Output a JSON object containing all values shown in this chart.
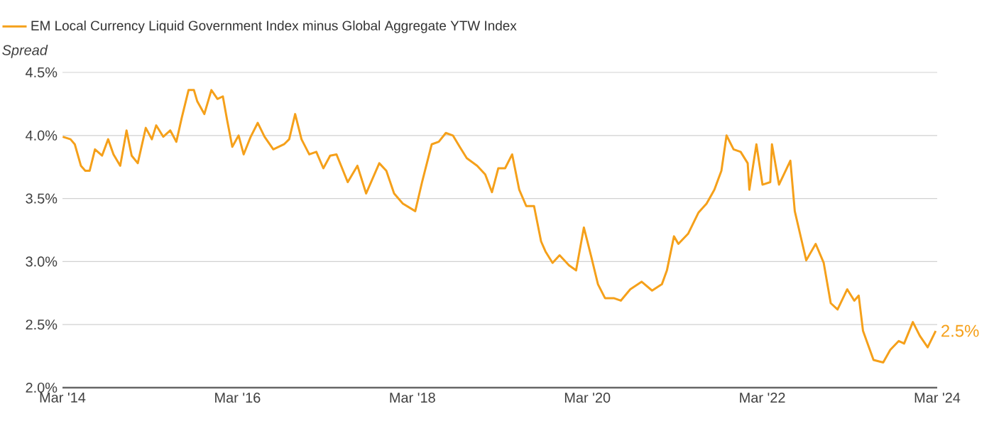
{
  "chart_data": {
    "type": "line",
    "ylabel": "Spread",
    "legend": "top",
    "grid": "y",
    "xlim": [
      "2014-03-01",
      "2024-03-01"
    ],
    "ylim": [
      2.0,
      4.5
    ],
    "xticks": [
      {
        "value": "2014-03-01",
        "label": "Mar '14"
      },
      {
        "value": "2016-03-01",
        "label": "Mar '16"
      },
      {
        "value": "2018-03-01",
        "label": "Mar '18"
      },
      {
        "value": "2020-03-01",
        "label": "Mar '20"
      },
      {
        "value": "2022-03-01",
        "label": "Mar '22"
      },
      {
        "value": "2024-03-01",
        "label": "Mar '24"
      }
    ],
    "yticks": [
      {
        "value": 2.0,
        "label": "2.0%"
      },
      {
        "value": 2.5,
        "label": "2.5%"
      },
      {
        "value": 3.0,
        "label": "3.0%"
      },
      {
        "value": 3.5,
        "label": "3.5%"
      },
      {
        "value": 4.0,
        "label": "4.0%"
      },
      {
        "value": 4.5,
        "label": "4.5%"
      }
    ],
    "annotations": [
      {
        "text": "2.5%",
        "x": "2024-02-25",
        "y": 2.45
      }
    ],
    "series": [
      {
        "name": "EM Local Currency Liquid Government Index minus Global Aggregate YTW Index",
        "color": "#f5a01a",
        "x": [
          "2014-03-02",
          "2014-04-04",
          "2014-04-22",
          "2014-05-17",
          "2014-06-05",
          "2014-06-23",
          "2014-07-15",
          "2014-08-14",
          "2014-09-09",
          "2014-10-01",
          "2014-10-29",
          "2014-11-25",
          "2014-12-16",
          "2015-01-11",
          "2015-02-14",
          "2015-03-09",
          "2015-03-27",
          "2015-04-26",
          "2015-05-25",
          "2015-06-20",
          "2015-07-12",
          "2015-08-10",
          "2015-09-02",
          "2015-09-16",
          "2015-10-15",
          "2015-11-14",
          "2015-12-09",
          "2016-01-01",
          "2016-01-19",
          "2016-02-10",
          "2016-03-06",
          "2016-03-27",
          "2016-04-26",
          "2016-05-25",
          "2016-06-23",
          "2016-07-29",
          "2016-09-13",
          "2016-10-04",
          "2016-10-29",
          "2016-11-25",
          "2016-12-27",
          "2017-01-26",
          "2017-02-25",
          "2017-03-23",
          "2017-04-19",
          "2017-06-05",
          "2017-07-15",
          "2017-08-21",
          "2017-10-15",
          "2017-11-14",
          "2017-12-16",
          "2018-01-22",
          "2018-03-13",
          "2018-04-11",
          "2018-05-21",
          "2018-06-20",
          "2018-07-19",
          "2018-08-18",
          "2018-09-16",
          "2018-10-15",
          "2018-11-28",
          "2019-01-01",
          "2019-01-29",
          "2019-02-25",
          "2019-03-23",
          "2019-04-22",
          "2019-05-21",
          "2019-06-20",
          "2019-07-22",
          "2019-08-21",
          "2019-09-09",
          "2019-10-08",
          "2019-11-07",
          "2019-12-16",
          "2020-01-15",
          "2020-02-17",
          "2020-03-16",
          "2020-04-15",
          "2020-05-14",
          "2020-06-20",
          "2020-07-19",
          "2020-08-28",
          "2020-10-15",
          "2020-11-28",
          "2021-01-08",
          "2021-01-29",
          "2021-02-28",
          "2021-03-16",
          "2021-04-26",
          "2021-06-09",
          "2021-07-12",
          "2021-08-14",
          "2021-09-13",
          "2021-10-04",
          "2021-11-03",
          "2021-12-02",
          "2022-01-01",
          "2022-01-08",
          "2022-02-07",
          "2022-03-02",
          "2022-04-04",
          "2022-04-11",
          "2022-05-10",
          "2022-06-27",
          "2022-07-15",
          "2022-08-14",
          "2022-09-02",
          "2022-10-11",
          "2022-11-14",
          "2022-12-13",
          "2023-01-11",
          "2023-02-21",
          "2023-03-20",
          "2023-04-08",
          "2023-04-26",
          "2023-06-09",
          "2023-07-19",
          "2023-08-18",
          "2023-09-23",
          "2023-10-15",
          "2023-11-21",
          "2023-12-20",
          "2024-01-22",
          "2024-02-25"
        ],
        "values": [
          3.99,
          3.97,
          3.93,
          3.76,
          3.72,
          3.72,
          3.89,
          3.84,
          3.97,
          3.85,
          3.76,
          4.04,
          3.84,
          3.78,
          4.06,
          3.97,
          4.08,
          3.99,
          4.04,
          3.95,
          4.14,
          4.36,
          4.36,
          4.27,
          4.17,
          4.36,
          4.29,
          4.31,
          4.12,
          3.91,
          4.0,
          3.85,
          3.99,
          4.1,
          3.99,
          3.89,
          3.93,
          3.97,
          4.17,
          3.97,
          3.85,
          3.87,
          3.74,
          3.84,
          3.85,
          3.63,
          3.76,
          3.54,
          3.78,
          3.72,
          3.54,
          3.46,
          3.4,
          3.63,
          3.93,
          3.95,
          4.02,
          4.0,
          3.91,
          3.82,
          3.76,
          3.69,
          3.55,
          3.74,
          3.74,
          3.85,
          3.57,
          3.44,
          3.44,
          3.16,
          3.08,
          2.99,
          3.05,
          2.97,
          2.93,
          3.27,
          3.05,
          2.82,
          2.71,
          2.71,
          2.69,
          2.78,
          2.84,
          2.77,
          2.82,
          2.93,
          3.2,
          3.14,
          3.22,
          3.39,
          3.46,
          3.57,
          3.72,
          4.0,
          3.89,
          3.87,
          3.78,
          3.57,
          3.93,
          3.61,
          3.63,
          3.93,
          3.61,
          3.8,
          3.4,
          3.16,
          3.01,
          3.14,
          2.99,
          2.67,
          2.62,
          2.78,
          2.69,
          2.73,
          2.45,
          2.22,
          2.2,
          2.3,
          2.37,
          2.35,
          2.52,
          2.41,
          2.32,
          2.45
        ]
      }
    ]
  }
}
